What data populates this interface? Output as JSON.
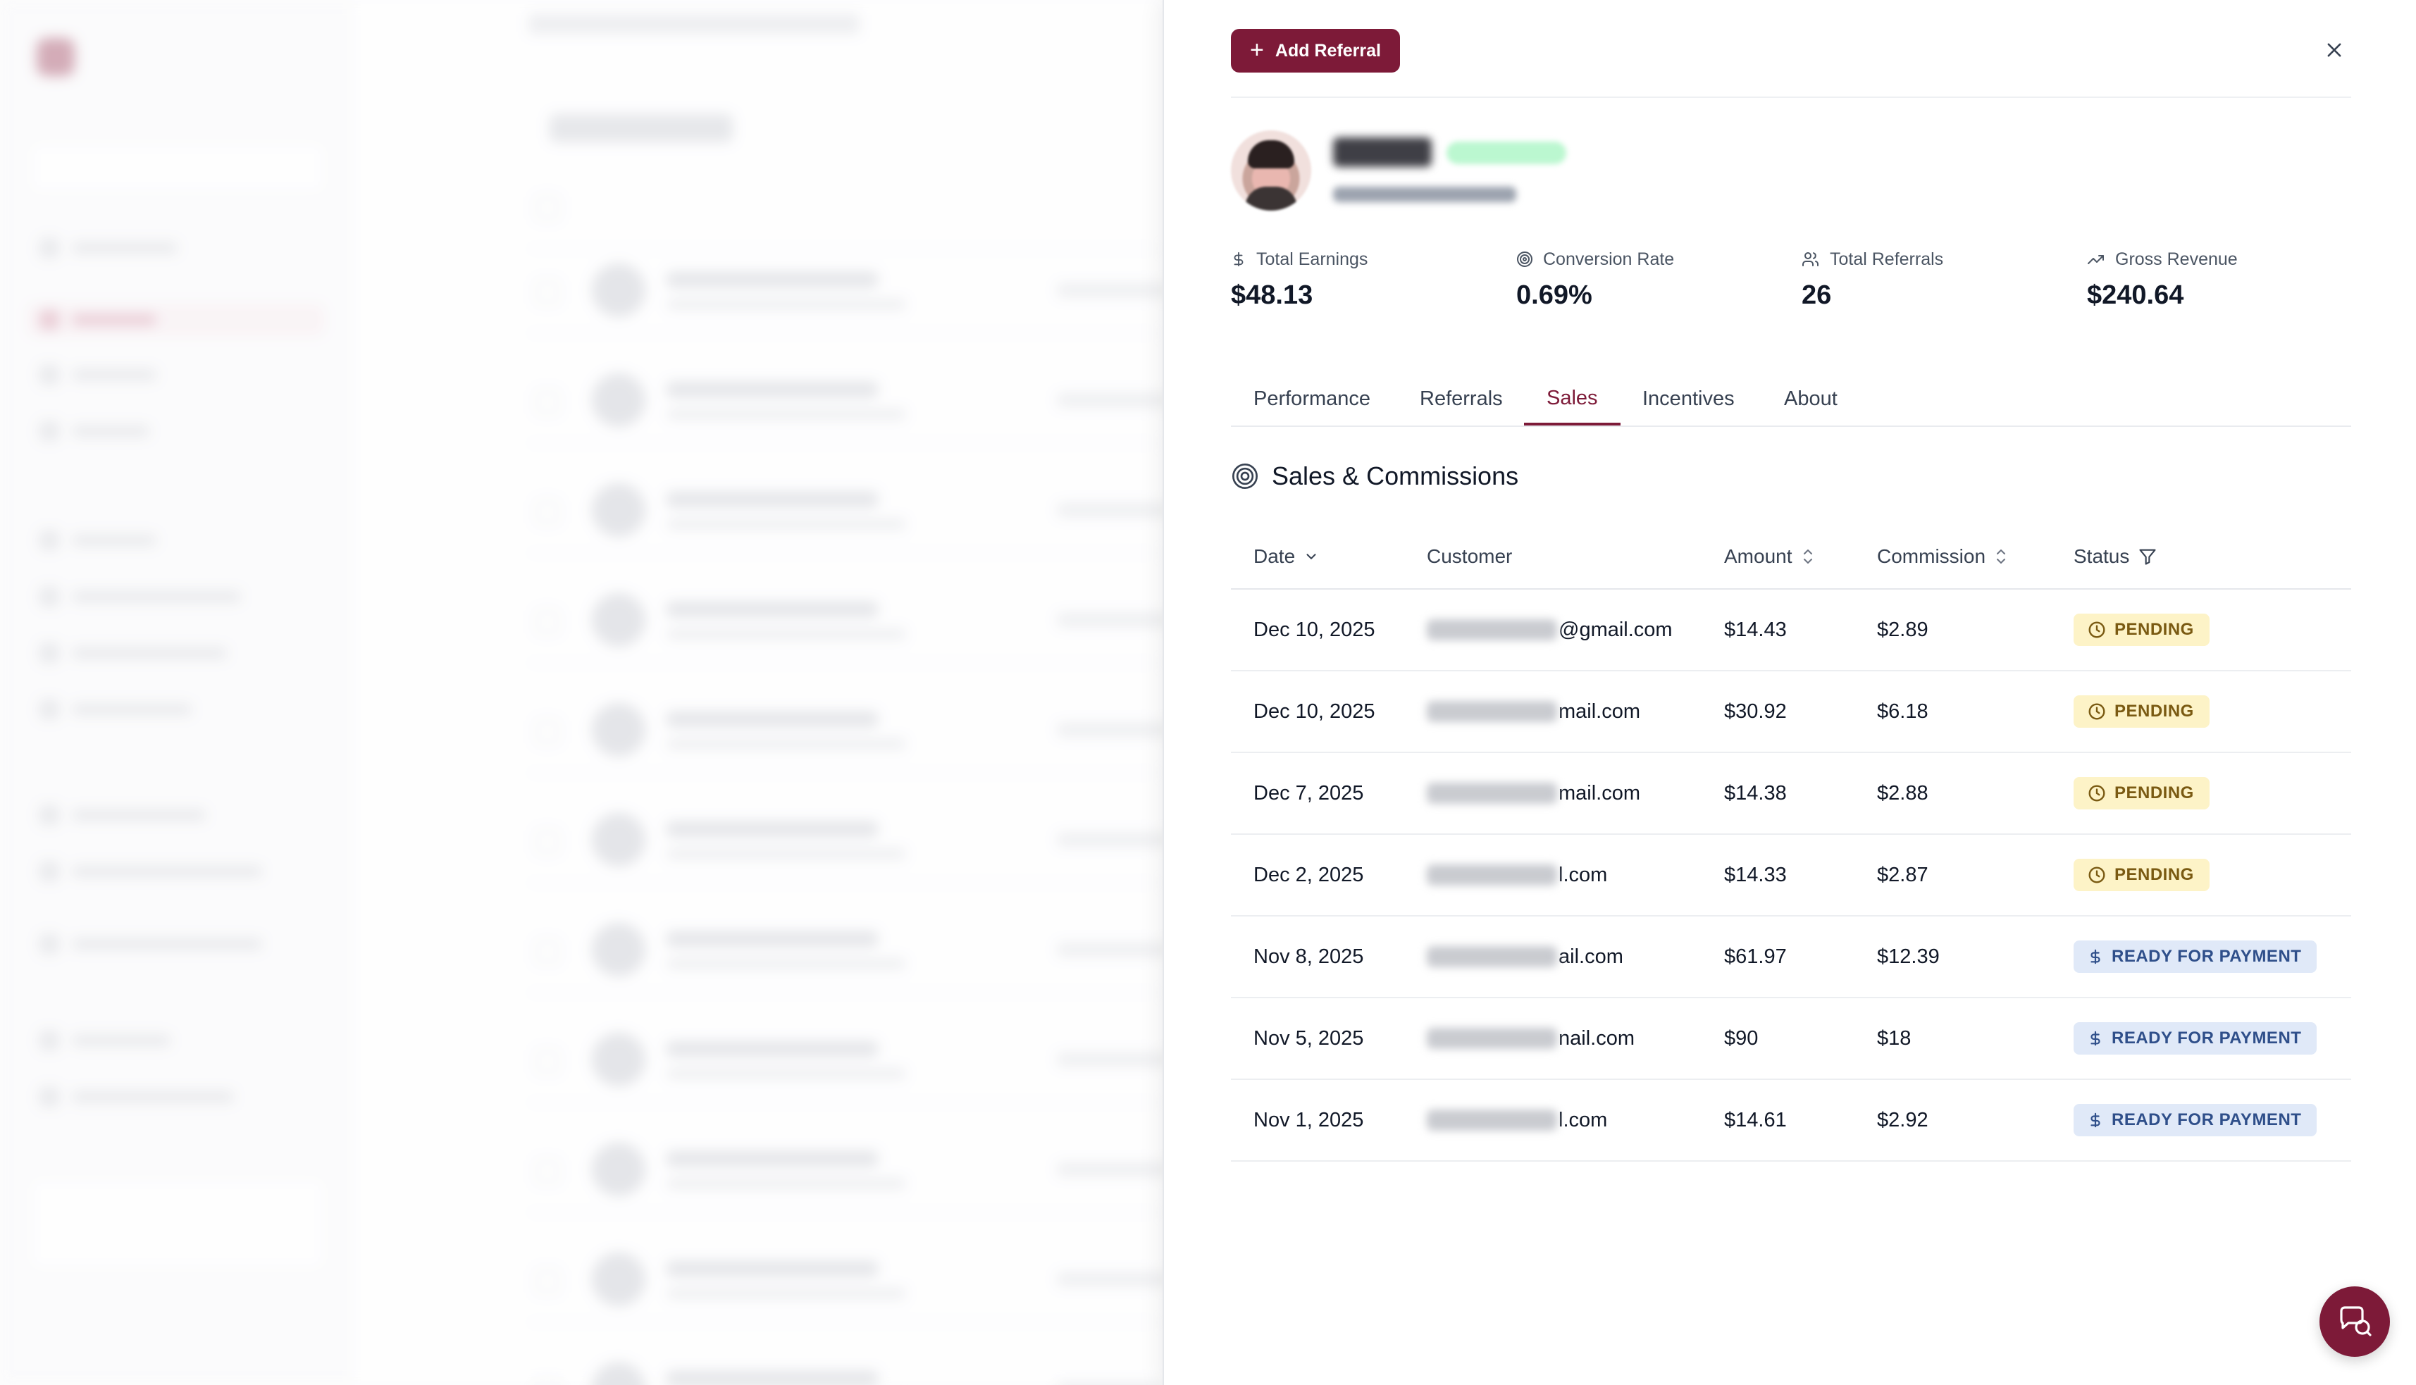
{
  "drawer": {
    "add_referral_label": "Add Referral",
    "stats": [
      {
        "label": "Total Earnings",
        "value": "$48.13",
        "icon": "dollar-icon"
      },
      {
        "label": "Conversion Rate",
        "value": "0.69%",
        "icon": "target-icon"
      },
      {
        "label": "Total Referrals",
        "value": "26",
        "icon": "users-icon"
      },
      {
        "label": "Gross Revenue",
        "value": "$240.64",
        "icon": "trending-up-icon"
      }
    ],
    "tabs": [
      "Performance",
      "Referrals",
      "Sales",
      "Incentives",
      "About"
    ],
    "active_tab": "Sales",
    "section_title": "Sales & Commissions",
    "table": {
      "columns": [
        "Date",
        "Customer",
        "Amount",
        "Commission",
        "Status"
      ],
      "rows": [
        {
          "date": "Dec 10, 2025",
          "customer": "@gmail.com",
          "amount": "$14.43",
          "commission": "$2.89",
          "status": "PENDING"
        },
        {
          "date": "Dec 10, 2025",
          "customer": "mail.com",
          "amount": "$30.92",
          "commission": "$6.18",
          "status": "PENDING"
        },
        {
          "date": "Dec 7, 2025",
          "customer": "mail.com",
          "amount": "$14.38",
          "commission": "$2.88",
          "status": "PENDING"
        },
        {
          "date": "Dec 2, 2025",
          "customer": "l.com",
          "amount": "$14.33",
          "commission": "$2.87",
          "status": "PENDING"
        },
        {
          "date": "Nov 8, 2025",
          "customer": "ail.com",
          "amount": "$61.97",
          "commission": "$12.39",
          "status": "READY FOR PAYMENT"
        },
        {
          "date": "Nov 5, 2025",
          "customer": "nail.com",
          "amount": "$90",
          "commission": "$18",
          "status": "READY FOR PAYMENT"
        },
        {
          "date": "Nov 1, 2025",
          "customer": "l.com",
          "amount": "$14.61",
          "commission": "$2.92",
          "status": "READY FOR PAYMENT"
        }
      ]
    }
  },
  "colors": {
    "brand": "#7d1a38",
    "pending_bg": "#fdf3c7",
    "pending_text": "#7a5a12",
    "ready_bg": "#e0e9f8",
    "ready_text": "#2f4f8a"
  }
}
